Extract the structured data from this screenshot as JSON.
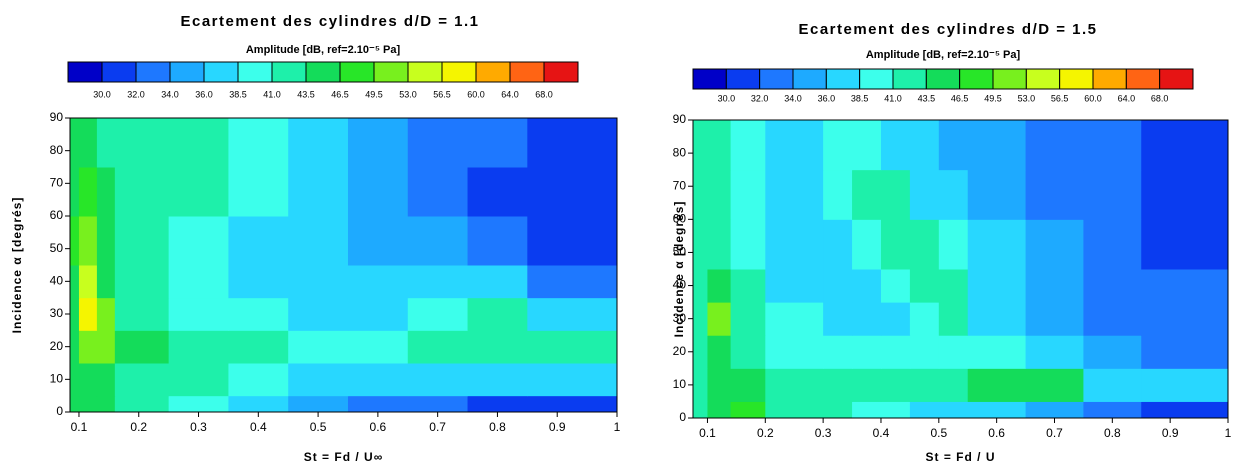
{
  "chart_data": [
    {
      "type": "contour",
      "title": "Ecartement des cylindres d/D = 1.1",
      "colorbar_title": "Amplitude [dB, ref=2.10⁻⁵ Pa]",
      "colors": [
        "#0000c8",
        "#0a3cf0",
        "#1e78ff",
        "#1eaaff",
        "#28d7ff",
        "#3cffeb",
        "#1ef0aa",
        "#14dc5a",
        "#28e628",
        "#78f01e",
        "#c8ff1e",
        "#f5f500",
        "#ffaa00",
        "#ff6414",
        "#e61414"
      ],
      "levels": [
        {
          "value": 30,
          "label": "30.0"
        },
        {
          "value": 32,
          "label": "32.0"
        },
        {
          "value": 34,
          "label": "34.0"
        },
        {
          "value": 36,
          "label": "36.0"
        },
        {
          "value": 38.5,
          "label": "38.5"
        },
        {
          "value": 41,
          "label": "41.0"
        },
        {
          "value": 43.5,
          "label": "43.5"
        },
        {
          "value": 46.5,
          "label": "46.5"
        },
        {
          "value": 49.5,
          "label": "49.5"
        },
        {
          "value": 53,
          "label": "53.0"
        },
        {
          "value": 56.5,
          "label": "56.5"
        },
        {
          "value": 60,
          "label": "60.0"
        },
        {
          "value": 64,
          "label": "64.0"
        },
        {
          "value": 68,
          "label": "68.0"
        }
      ],
      "x_label": "St = Fd / U∞",
      "y_label": "Incidence α [degrés]",
      "xlim": [
        0.085,
        1
      ],
      "ylim": [
        0,
        90
      ],
      "xticks": [
        0.1,
        0.2,
        0.3,
        0.4,
        0.5,
        0.6,
        0.7,
        0.8,
        0.9,
        1
      ],
      "yticks": [
        0,
        10,
        20,
        30,
        40,
        50,
        60,
        70,
        80,
        90
      ],
      "x_edges": [
        0.085,
        0.1,
        0.13,
        0.16,
        0.25,
        0.35,
        0.45,
        0.55,
        0.65,
        0.75,
        0.85,
        1
      ],
      "y_edges": [
        0,
        5,
        15,
        25,
        35,
        45,
        60,
        75,
        90
      ],
      "z": [
        [
          44,
          45,
          44,
          42,
          40,
          38,
          35,
          33,
          32,
          31,
          30
        ],
        [
          45,
          46,
          45,
          42,
          41,
          39,
          38,
          37,
          37,
          38,
          36
        ],
        [
          46,
          50,
          52,
          44,
          43,
          41,
          40,
          40,
          41,
          42,
          41
        ],
        [
          46,
          57,
          50,
          42,
          40,
          39,
          37,
          38,
          40,
          43,
          38
        ],
        [
          46,
          55,
          46,
          42,
          40,
          38,
          36,
          37,
          37,
          36,
          33
        ],
        [
          47,
          52,
          44,
          42,
          40,
          38,
          36,
          35,
          34,
          33,
          31
        ],
        [
          46,
          47,
          44,
          42,
          41,
          40,
          37,
          34,
          32,
          31,
          30
        ],
        [
          45,
          44,
          43,
          42,
          41,
          39,
          37,
          35,
          33,
          32,
          30
        ]
      ]
    },
    {
      "type": "contour",
      "title": "Ecartement des cylindres d/D = 1.5",
      "colorbar_title": "Amplitude [dB, ref=2.10⁻⁵ Pa]",
      "colors": [
        "#0000c8",
        "#0a3cf0",
        "#1e78ff",
        "#1eaaff",
        "#28d7ff",
        "#3cffeb",
        "#1ef0aa",
        "#14dc5a",
        "#28e628",
        "#78f01e",
        "#c8ff1e",
        "#f5f500",
        "#ffaa00",
        "#ff6414",
        "#e61414"
      ],
      "levels": [
        {
          "value": 30,
          "label": "30.0"
        },
        {
          "value": 32,
          "label": "32.0"
        },
        {
          "value": 34,
          "label": "34.0"
        },
        {
          "value": 36,
          "label": "36.0"
        },
        {
          "value": 38.5,
          "label": "38.5"
        },
        {
          "value": 41,
          "label": "41.0"
        },
        {
          "value": 43.5,
          "label": "43.5"
        },
        {
          "value": 46.5,
          "label": "46.5"
        },
        {
          "value": 49.5,
          "label": "49.5"
        },
        {
          "value": 53,
          "label": "53.0"
        },
        {
          "value": 56.5,
          "label": "56.5"
        },
        {
          "value": 60,
          "label": "60.0"
        },
        {
          "value": 64,
          "label": "64.0"
        },
        {
          "value": 68,
          "label": "68.0"
        }
      ],
      "x_label": "St = Fd / U",
      "y_label": "Incidence α [degrés]",
      "xlim": [
        0.075,
        1
      ],
      "ylim": [
        0,
        90
      ],
      "xticks": [
        0.1,
        0.2,
        0.3,
        0.4,
        0.5,
        0.6,
        0.7,
        0.8,
        0.9,
        1
      ],
      "yticks": [
        0,
        10,
        20,
        30,
        40,
        50,
        60,
        70,
        80,
        90
      ],
      "x_edges": [
        0.075,
        0.1,
        0.14,
        0.2,
        0.3,
        0.35,
        0.4,
        0.45,
        0.5,
        0.55,
        0.65,
        0.75,
        0.85,
        1
      ],
      "y_edges": [
        0,
        5,
        15,
        25,
        35,
        45,
        60,
        75,
        90
      ],
      "z": [
        [
          43,
          44,
          48,
          42,
          41,
          40,
          39,
          38,
          37,
          36,
          35,
          32,
          31
        ],
        [
          43,
          44,
          45,
          43,
          42,
          42,
          42,
          42,
          43,
          44,
          44,
          38,
          37
        ],
        [
          42,
          44,
          42,
          40,
          39,
          39,
          39,
          39,
          40,
          39,
          36,
          34,
          33
        ],
        [
          42,
          50,
          42,
          39,
          38,
          38,
          38,
          40,
          42,
          37,
          35,
          33,
          32
        ],
        [
          42,
          44,
          41,
          38,
          38,
          38,
          39,
          42,
          42,
          36,
          34,
          33,
          32
        ],
        [
          42,
          42,
          40,
          38,
          38,
          39,
          42,
          43,
          40,
          36,
          34,
          32,
          31
        ],
        [
          42,
          41,
          40,
          38,
          39,
          42,
          41,
          38,
          37,
          35,
          33,
          32,
          31
        ],
        [
          42,
          41,
          40,
          38,
          40,
          40,
          38,
          36,
          35,
          34,
          33,
          32,
          31
        ]
      ]
    }
  ]
}
